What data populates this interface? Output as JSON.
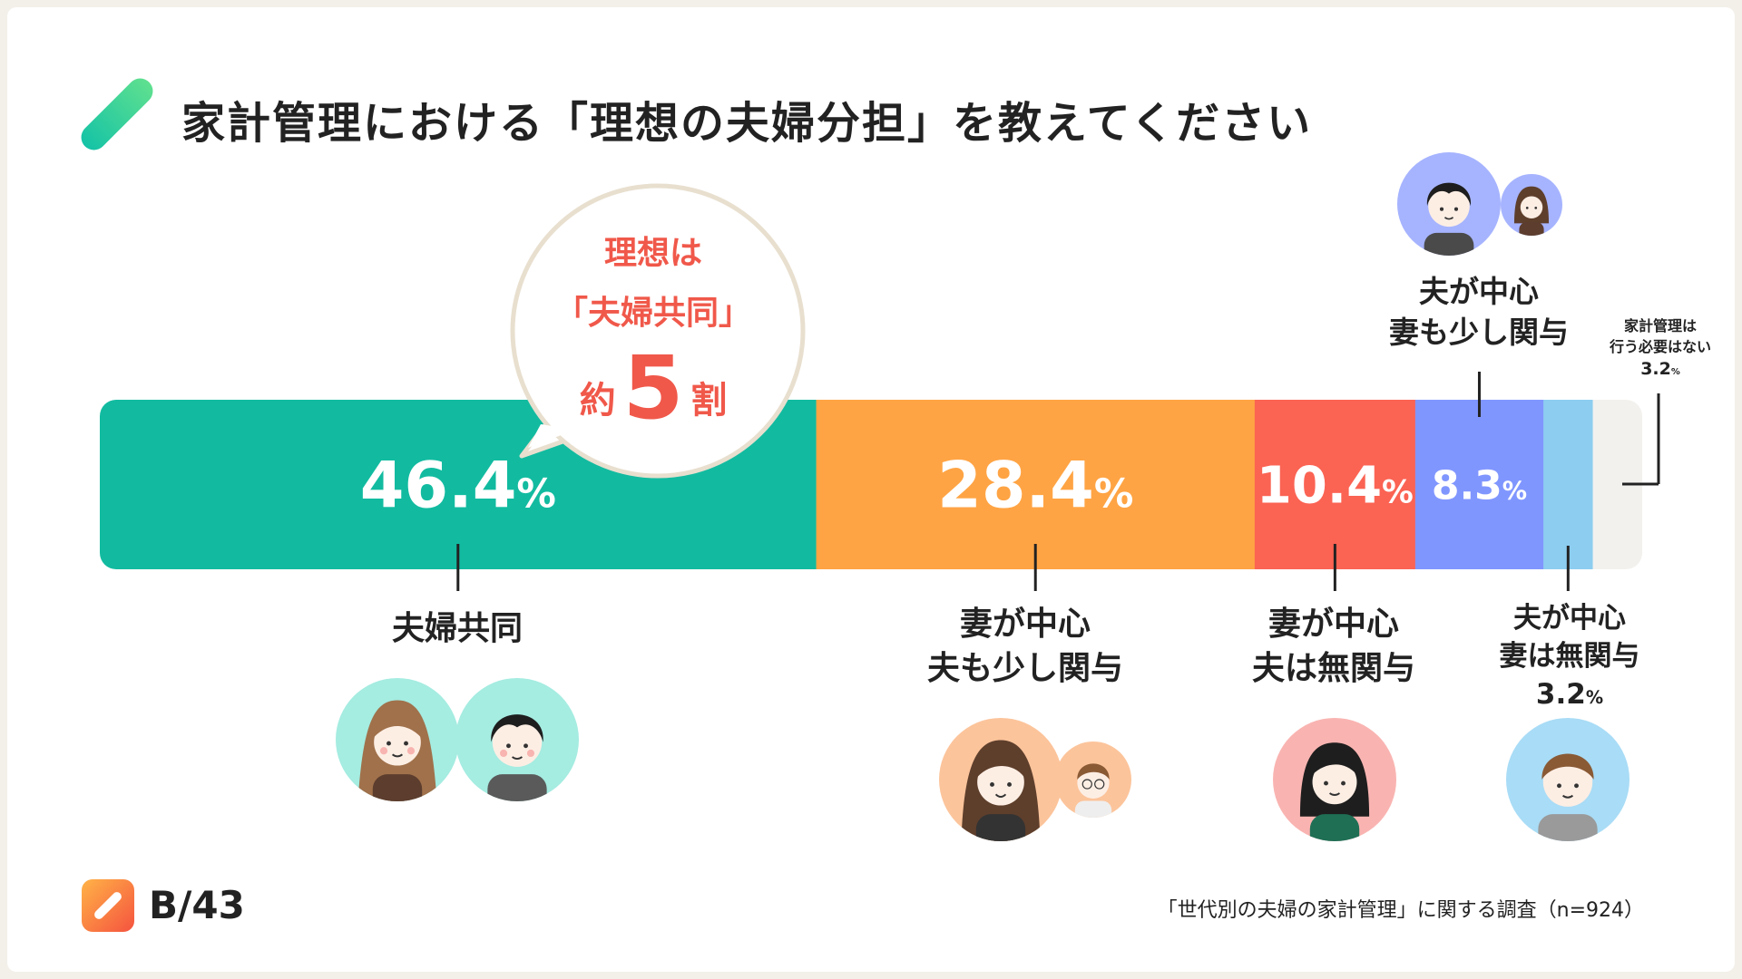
{
  "title": "家計管理における「理想の夫婦分担」を教えてください",
  "bubble": {
    "line1": "理想は",
    "line2": "「夫婦共同」",
    "line3_pre": "約",
    "line3_num": "5",
    "line3_post": "割"
  },
  "brand": {
    "name": "B/43"
  },
  "source": "「世代別の夫婦の家計管理」に関する調査（n=924）",
  "colors": {
    "teal": "#12bba0",
    "orange": "#ffa444",
    "red": "#fb6353",
    "blue": "#8096ff",
    "lightblue": "#8dcdf0",
    "gray": "#f3f1ee"
  },
  "chart_data": {
    "type": "bar",
    "orientation": "horizontal-stacked",
    "unit": "%",
    "segments": [
      {
        "name": "夫婦共同",
        "value": 46.4,
        "label_lines": [
          "夫婦共同"
        ],
        "value_text": "46.4",
        "color": "#12bba0"
      },
      {
        "name": "妻が中心 夫も少し関与",
        "value": 28.4,
        "label_lines": [
          "妻が中心",
          "夫も少し関与"
        ],
        "value_text": "28.4",
        "color": "#ffa444"
      },
      {
        "name": "妻が中心 夫は無関与",
        "value": 10.4,
        "label_lines": [
          "妻が中心",
          "夫は無関与"
        ],
        "value_text": "10.4",
        "color": "#fb6353"
      },
      {
        "name": "夫が中心 妻も少し関与",
        "value": 8.3,
        "label_lines": [
          "夫が中心",
          "妻も少し関与"
        ],
        "value_text": "8.3",
        "color": "#8096ff"
      },
      {
        "name": "夫が中心 妻は無関与",
        "value": 3.2,
        "label_lines": [
          "夫が中心",
          "妻は無関与"
        ],
        "value_text": "3.2",
        "color": "#8dcdf0"
      },
      {
        "name": "家計管理は行う必要はない",
        "value": 3.2,
        "label_lines": [
          "家計管理は",
          "行う必要はない"
        ],
        "value_text": "3.2",
        "color": "#f3f1ee"
      }
    ]
  }
}
